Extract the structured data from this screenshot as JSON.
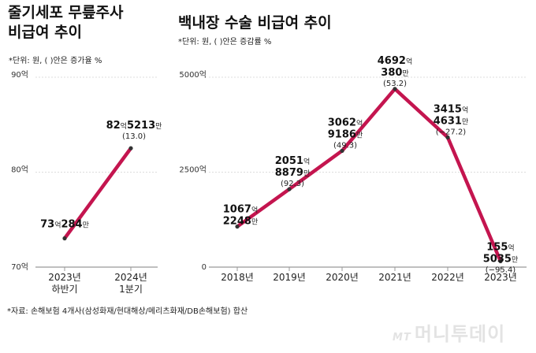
{
  "left_title": [
    "줄기세포 무릎주사",
    "비급여 추이"
  ],
  "left_unit": "*단위: 원, ( )안은 증가율 %",
  "right_title": "백내장 수술 비급여 추이",
  "right_unit": "*단위: 원, ( )안은 증감률 %",
  "footer": "*자료: 손해보험 4개사(삼성화재/현대해상/메리츠화재/DB손해보험) 합산",
  "watermark": {
    "brand": "MT",
    "name": "머니투데이"
  },
  "colors": {
    "line": "#c4154f",
    "grid": "#dcdcdc",
    "axis": "#999999",
    "point": "#333333"
  },
  "chart_data": [
    {
      "type": "line",
      "title": "줄기세포 무릎주사 비급여 추이",
      "unit_label": "*단위: 원, ( )안은 증가율 %",
      "y_tick_labels": [
        "90억",
        "80억",
        "70억"
      ],
      "y_ticks": [
        9000000000,
        8000000000,
        7000000000
      ],
      "ylim": [
        7000000000,
        9000000000
      ],
      "categories": [
        [
          "2023년",
          "하반기"
        ],
        [
          "2024년",
          "1분기"
        ]
      ],
      "values": [
        7302840000,
        8252130000
      ],
      "labels": [
        {
          "eok": "73",
          "man": "284",
          "pct": ""
        },
        {
          "eok": "82",
          "man": "5213",
          "pct": "(13.0)"
        }
      ],
      "unit_eok": "억",
      "unit_man": "만"
    },
    {
      "type": "line",
      "title": "백내장 수술 비급여 추이",
      "unit_label": "*단위: 원, ( )안은 증감률 %",
      "y_tick_labels": [
        "5000억",
        "2500억",
        "0"
      ],
      "y_ticks": [
        500000000000,
        250000000000,
        0
      ],
      "ylim": [
        0,
        500000000000
      ],
      "categories": [
        [
          "2018년"
        ],
        [
          "2019년"
        ],
        [
          "2020년"
        ],
        [
          "2021년"
        ],
        [
          "2022년"
        ],
        [
          "2023년"
        ]
      ],
      "values": [
        106722480000,
        205188790000,
        306291860000,
        469203800000,
        341546310000,
        15550350000
      ],
      "labels": [
        {
          "eok": "1067",
          "man": "2248",
          "pct": ""
        },
        {
          "eok": "2051",
          "man": "8879",
          "pct": "(92.3)"
        },
        {
          "eok": "3062",
          "man": "9186",
          "pct": "(49.3)"
        },
        {
          "eok": "4692",
          "man": "380",
          "pct": "(53.2)"
        },
        {
          "eok": "3415",
          "man": "4631",
          "pct": "(−27.2)"
        },
        {
          "eok": "155",
          "man": "5035",
          "pct": "(−95.4)"
        }
      ],
      "unit_eok": "억",
      "unit_man": "만"
    }
  ]
}
